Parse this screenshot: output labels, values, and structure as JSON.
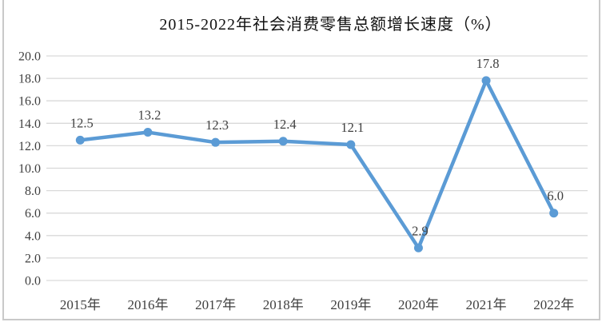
{
  "chart": {
    "title": "2015-2022年社会消费零售总额增长速度（%）"
  },
  "chart_data": {
    "type": "line",
    "title": "2015-2022年社会消费零售总额增长速度（%）",
    "categories": [
      "2015年",
      "2016年",
      "2017年",
      "2018年",
      "2019年",
      "2020年",
      "2021年",
      "2022年"
    ],
    "values": [
      12.5,
      13.2,
      12.3,
      12.4,
      12.1,
      2.9,
      17.8,
      6.0
    ],
    "data_labels": [
      "12.5",
      "13.2",
      "12.3",
      "12.4",
      "12.1",
      "2.9",
      "17.8",
      "6.0"
    ],
    "xlabel": "",
    "ylabel": "",
    "ylim": [
      0,
      20
    ],
    "ytick_step": 2,
    "ytick_labels": [
      "0.0",
      "2.0",
      "4.0",
      "6.0",
      "8.0",
      "10.0",
      "12.0",
      "14.0",
      "16.0",
      "18.0",
      "20.0"
    ],
    "grid": true,
    "legend": "none",
    "line_color": "#5B9BD5",
    "marker_color": "#5B9BD5",
    "grid_color": "#D9D9D9",
    "axis_label_color": "#404040",
    "data_label_color": "#404040",
    "border_color": "#C9C9C9",
    "background_color": "#FFFFFF"
  }
}
